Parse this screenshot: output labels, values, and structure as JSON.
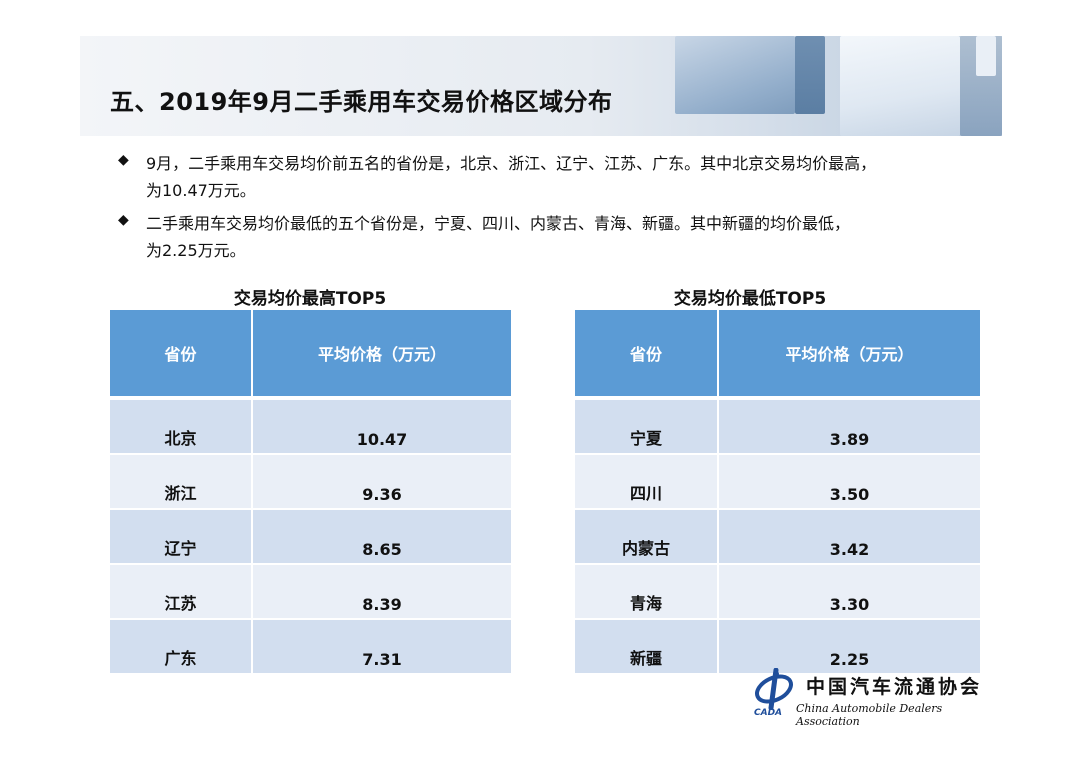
{
  "header": {
    "title": "五、2019年9月二手乘用车交易价格区域分布"
  },
  "bullets": [
    {
      "icon": "diamond-bullet-icon",
      "line1": "9月，二手乘用车交易均价前五名的省份是，北京、浙江、辽宁、江苏、广东。其中北京交易均价最高，",
      "line2": "为10.47万元。"
    },
    {
      "icon": "diamond-bullet-icon",
      "line1": "二手乘用车交易均价最低的五个省份是，宁夏、四川、内蒙古、青海、新疆。其中新疆的均价最低，",
      "line2": "为2.25万元。"
    }
  ],
  "tables": {
    "highest": {
      "caption": "交易均价最高TOP5",
      "columns": [
        "省份",
        "平均价格（万元）"
      ],
      "rows": [
        {
          "province": "北京",
          "price": "10.47"
        },
        {
          "province": "浙江",
          "price": "9.36"
        },
        {
          "province": "辽宁",
          "price": "8.65"
        },
        {
          "province": "江苏",
          "price": "8.39"
        },
        {
          "province": "广东",
          "price": "7.31"
        }
      ]
    },
    "lowest": {
      "caption": "交易均价最低TOP5",
      "columns": [
        "省份",
        "平均价格（万元）"
      ],
      "rows": [
        {
          "province": "宁夏",
          "price": "3.89"
        },
        {
          "province": "四川",
          "price": "3.50"
        },
        {
          "province": "内蒙古",
          "price": "3.42"
        },
        {
          "province": "青海",
          "price": "3.30"
        },
        {
          "province": "新疆",
          "price": "2.25"
        }
      ]
    }
  },
  "logo": {
    "chinese_name": "中国汽车流通协会",
    "english_name": "China Automobile Dealers Association",
    "abbreviation": "CADA"
  },
  "colors": {
    "header_fill": "#5b9bd5",
    "row_dark": "#d2deef",
    "row_light": "#eaeff7",
    "logo_blue": "#1f4e9b"
  }
}
